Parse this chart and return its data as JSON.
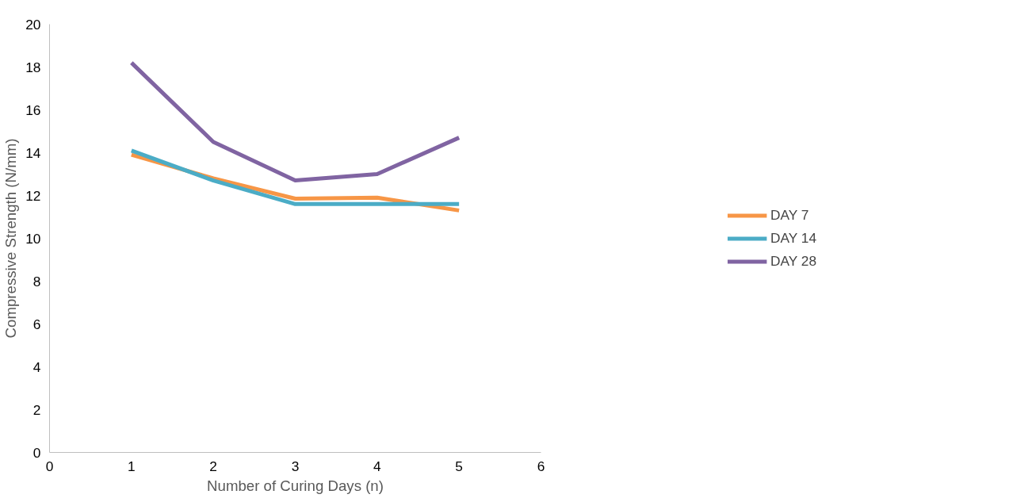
{
  "chart_data": {
    "type": "line",
    "xlabel": "Number of Curing Days (n)",
    "ylabel": "Compressive Strength (N/mm)",
    "x": [
      1,
      2,
      3,
      4,
      5
    ],
    "series": [
      {
        "name": "DAY 7",
        "color": "#f79646",
        "values": [
          13.9,
          12.8,
          11.85,
          11.9,
          11.3
        ]
      },
      {
        "name": "DAY 14",
        "color": "#4bacc6",
        "values": [
          14.1,
          12.7,
          11.6,
          11.6,
          11.6
        ]
      },
      {
        "name": "DAY 28",
        "color": "#8064a2",
        "values": [
          18.2,
          14.5,
          12.7,
          13.0,
          14.7
        ]
      }
    ],
    "xlim": [
      0,
      6
    ],
    "xticks": [
      0,
      1,
      2,
      3,
      4,
      5,
      6
    ],
    "ylim": [
      0,
      20
    ],
    "yticks": [
      0,
      2,
      4,
      6,
      8,
      10,
      12,
      14,
      16,
      18,
      20
    ],
    "grid": false,
    "legend": "right",
    "marker": "none",
    "line_style": "solid"
  }
}
